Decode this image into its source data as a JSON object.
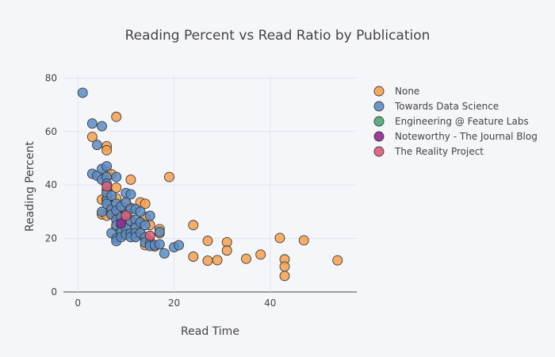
{
  "chart_data": {
    "type": "scatter",
    "title": "Reading Percent vs Read Ratio by Publication",
    "xlabel": "Read Time",
    "ylabel": "Reading Percent",
    "xlim": [
      -3,
      58
    ],
    "ylim": [
      0,
      81
    ],
    "xticks": [
      0,
      20,
      40
    ],
    "yticks": [
      0,
      20,
      40,
      60,
      80
    ],
    "grid": true,
    "legend_position": "top-right",
    "series": [
      {
        "name": "None",
        "color": "#f6a04d",
        "x": [
          3,
          5,
          5,
          6,
          6,
          6,
          6,
          6,
          6,
          7,
          7,
          8,
          8,
          8,
          8,
          8,
          9,
          9,
          9,
          10,
          10,
          10,
          10,
          11,
          11,
          11,
          12,
          12,
          13,
          13,
          14,
          14,
          14,
          14,
          15,
          15,
          16,
          17,
          17,
          19,
          24,
          24,
          27,
          27,
          29,
          31,
          31,
          35,
          38,
          42,
          43,
          43,
          43,
          47,
          54
        ],
        "y": [
          58,
          34.5,
          29,
          54.5,
          53,
          45,
          38,
          35,
          28.5,
          44,
          30,
          65.5,
          39,
          35,
          29,
          24.5,
          28,
          25,
          21.5,
          33,
          30,
          26,
          22,
          42,
          31.5,
          27,
          25,
          21,
          33.5,
          22,
          33,
          28,
          20,
          17.5,
          25,
          19,
          17,
          23.5,
          22,
          43,
          25,
          13.2,
          19.1,
          11.7,
          11.9,
          18.6,
          15.5,
          12.4,
          14,
          20.2,
          12.2,
          9.5,
          6,
          19.3,
          11.8
        ]
      },
      {
        "name": "Towards Data Science",
        "color": "#5b8cc4",
        "x": [
          1,
          3,
          3,
          4,
          4,
          5,
          5,
          5,
          5,
          6,
          6,
          6,
          6,
          6,
          6,
          7,
          7,
          7,
          7,
          8,
          8,
          8,
          8,
          8,
          8,
          8,
          9,
          9,
          9,
          9,
          9,
          10,
          10,
          10,
          10,
          10,
          11,
          11,
          11,
          11,
          11,
          12,
          12,
          12,
          12,
          12,
          13,
          13,
          13,
          14,
          14,
          14,
          15,
          15,
          15,
          16,
          17,
          17,
          18,
          20,
          21
        ],
        "y": [
          74.5,
          63,
          44.2,
          55,
          43.5,
          62,
          46,
          42,
          30,
          47,
          43,
          40.5,
          37,
          34,
          33,
          36,
          31,
          29,
          22,
          43,
          33,
          30.5,
          27,
          25,
          20,
          19,
          32,
          28,
          25,
          22.5,
          20.5,
          37,
          33.5,
          29,
          24,
          21.5,
          36.5,
          31,
          26.5,
          22,
          20.5,
          31,
          27,
          24,
          22,
          20.5,
          30,
          26,
          22,
          25,
          20.5,
          18.5,
          28.5,
          18,
          17.2,
          17.5,
          22.5,
          17.8,
          14.4,
          16.7,
          17.5
        ]
      },
      {
        "name": "Engineering @ Feature Labs",
        "color": "#4aaa73",
        "x": [],
        "y": []
      },
      {
        "name": "Noteworthy - The Journal Blog",
        "color": "#93278f",
        "x": [
          9
        ],
        "y": [
          25.7
        ]
      },
      {
        "name": "The Reality Project",
        "color": "#e05b78",
        "x": [
          6,
          10,
          15
        ],
        "y": [
          39.5,
          28.5,
          21
        ]
      }
    ]
  }
}
